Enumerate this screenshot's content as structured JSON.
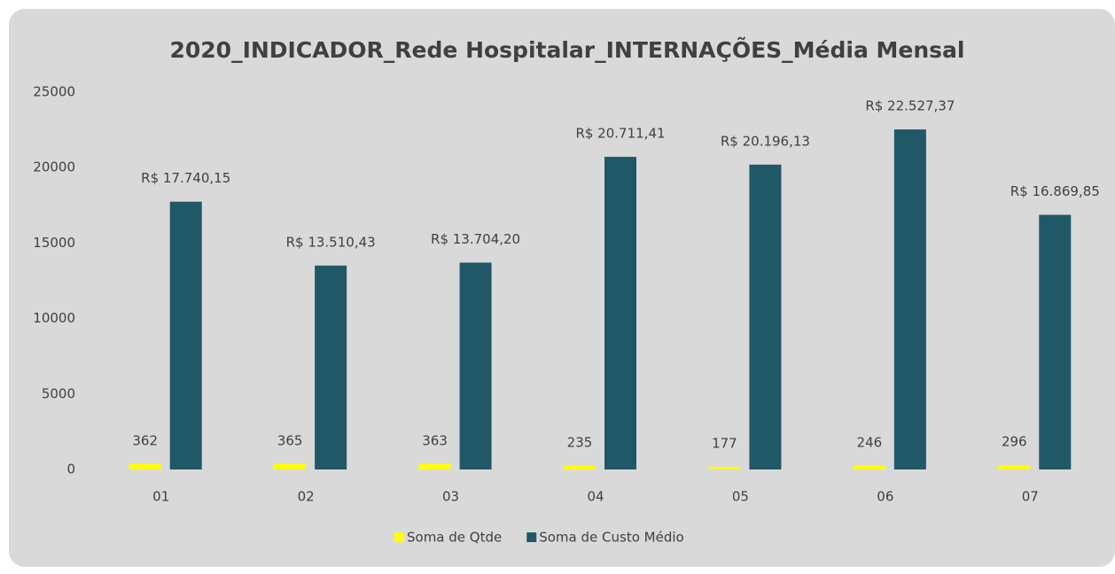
{
  "chart_data": {
    "type": "bar",
    "title": "2020_INDICADOR_Rede Hospitalar_INTERNAÇÕES_Média Mensal",
    "categories": [
      "01",
      "02",
      "03",
      "04",
      "05",
      "06",
      "07"
    ],
    "series": [
      {
        "name": "Soma de Qtde",
        "color": "#ffff00",
        "values": [
          362,
          365,
          363,
          235,
          177,
          246,
          296
        ]
      },
      {
        "name": "Soma de Custo Médio",
        "color": "#215868",
        "values": [
          17740.15,
          13510.43,
          13704.2,
          20711.41,
          20196.13,
          22527.37,
          16869.85
        ],
        "value_labels": [
          "R$ 17.740,15",
          "R$ 13.510,43",
          "R$ 13.704,20",
          "R$ 20.711,41",
          "R$ 20.196,13",
          "R$ 22.527,37",
          "R$ 16.869,85"
        ]
      }
    ],
    "ylim": [
      0,
      25000
    ],
    "yticks": [
      0,
      5000,
      10000,
      15000,
      20000,
      25000
    ],
    "grid": false,
    "legend": "bottom"
  }
}
